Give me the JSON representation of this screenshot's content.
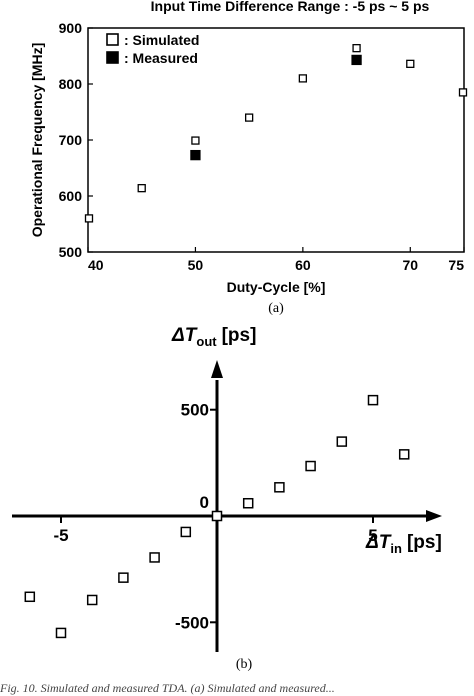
{
  "chart_data": [
    {
      "type": "scatter",
      "title": "Input Time Difference Range : -5 ps ~ 5 ps",
      "xlabel": "Duty-Cycle [%]",
      "ylabel": "Operational Frequency [MHz]",
      "xlim": [
        40,
        75
      ],
      "ylim": [
        500,
        900
      ],
      "xticks": [
        "40",
        "50",
        "60",
        "70",
        "75"
      ],
      "yticks": [
        "500",
        "600",
        "700",
        "800",
        "900"
      ],
      "legend_position": "top-left",
      "series": [
        {
          "name": ": Simulated",
          "marker": "open-square",
          "x": [
            40,
            45,
            50,
            55,
            60,
            65,
            70,
            75
          ],
          "y": [
            560,
            614,
            699,
            740,
            810,
            864,
            836,
            785
          ]
        },
        {
          "name": ": Measured",
          "marker": "filled-square",
          "x": [
            50,
            65
          ],
          "y": [
            673,
            843
          ]
        }
      ],
      "panel_label": "(a)"
    },
    {
      "type": "scatter",
      "xlabel_symbol": "ΔT",
      "xlabel_sub": "in",
      "xlabel_unit": "[ps]",
      "ylabel_symbol": "ΔT",
      "ylabel_sub": "out",
      "ylabel_unit": "[ps]",
      "xtick_labels": [
        {
          "value": -5,
          "text": "-5"
        },
        {
          "value": 5,
          "text": "5"
        }
      ],
      "ytick_labels": [
        {
          "value": 500,
          "text": "500"
        },
        {
          "value": 0,
          "text": "0"
        },
        {
          "value": -500,
          "text": "-500"
        }
      ],
      "series": [
        {
          "marker": "open-square",
          "x": [
            -6,
            -5,
            -4,
            -3,
            -2,
            -1,
            0,
            1,
            2,
            3,
            4,
            5,
            6
          ],
          "y": [
            -380,
            -550,
            -395,
            -290,
            -195,
            -75,
            0,
            60,
            135,
            235,
            350,
            545,
            290
          ]
        }
      ],
      "panel_label": "(b)"
    }
  ],
  "caption_fragment": "Fig. 10.  Simulated and measured TDA. (a) Simulated and measured..."
}
